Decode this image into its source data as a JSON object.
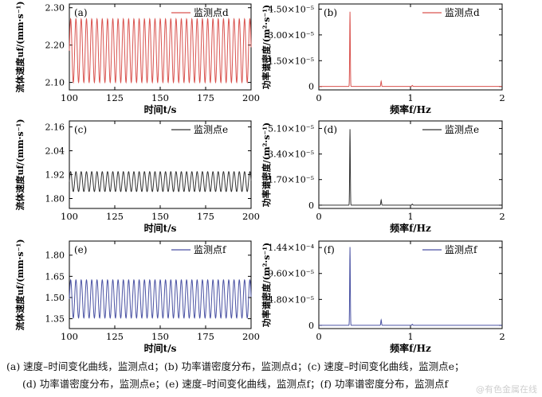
{
  "chart_data": [
    {
      "id": "a",
      "type": "line",
      "panel_label": "(a)",
      "xlabel": "时间t/s",
      "ylabel": "流体速度uf/(mm·s⁻¹)",
      "legend": "监测点d",
      "legend_position": "top-right",
      "color": "#d9534f",
      "xlim": [
        100,
        200
      ],
      "ylim": [
        2.08,
        2.31
      ],
      "xticks": [
        "100",
        "125",
        "150",
        "175",
        "200"
      ],
      "yticks": [
        "2.10",
        "2.20",
        "2.30"
      ],
      "series": [
        {
          "mean": 2.185,
          "amplitude": 0.085,
          "period_s": 2.9
        }
      ]
    },
    {
      "id": "b",
      "type": "line",
      "panel_label": "(b)",
      "xlabel": "频率f/Hz",
      "ylabel": "功率谱密度/(m²·s⁻¹)",
      "legend": "监测点d",
      "legend_position": "top-right",
      "color": "#d9534f",
      "xlim": [
        0,
        2
      ],
      "ylim": [
        -2e-06,
        4.8e-05
      ],
      "xticks": [
        "0",
        "1",
        "2"
      ],
      "yticks": [
        "0",
        "1.50×10⁻⁵",
        "3.00×10⁻⁵",
        "4.50×10⁻⁵"
      ],
      "peaks": [
        [
          0.34,
          4.35e-05
        ],
        [
          0.68,
          3e-06
        ],
        [
          1.02,
          6e-07
        ]
      ]
    },
    {
      "id": "c",
      "type": "line",
      "panel_label": "(c)",
      "xlabel": "时间t/s",
      "ylabel": "流体速度uf/(mm·s⁻¹)",
      "legend": "监测点e",
      "legend_position": "top-right",
      "color": "#333333",
      "xlim": [
        100,
        200
      ],
      "ylim": [
        1.75,
        2.19
      ],
      "xticks": [
        "100",
        "125",
        "150",
        "175",
        "200"
      ],
      "yticks": [
        "1.80",
        "1.92",
        "2.04",
        "2.16"
      ],
      "series": [
        {
          "mean": 1.885,
          "amplitude": 0.05,
          "period_s": 2.9
        }
      ]
    },
    {
      "id": "d",
      "type": "line",
      "panel_label": "(d)",
      "xlabel": "频率f/Hz",
      "ylabel": "功率谱密度/(m²·s⁻¹)",
      "legend": "监测点e",
      "legend_position": "top-right",
      "color": "#333333",
      "xlim": [
        0,
        2
      ],
      "ylim": [
        -2.2e-06,
        5.6e-05
      ],
      "xticks": [
        "0",
        "1",
        "2"
      ],
      "yticks": [
        "0",
        "1.70×10⁻⁵",
        "3.40×10⁻⁵",
        "5.10×10⁻⁵"
      ],
      "peaks": [
        [
          0.34,
          5.05e-05
        ],
        [
          0.68,
          3.4e-06
        ],
        [
          1.02,
          7e-07
        ]
      ]
    },
    {
      "id": "e",
      "type": "line",
      "panel_label": "(e)",
      "xlabel": "时间t/s",
      "ylabel": "流体速度uf/(mm·s⁻¹)",
      "legend": "监测点f",
      "legend_position": "top-right",
      "color": "#4a52a3",
      "xlim": [
        100,
        200
      ],
      "ylim": [
        1.28,
        1.9
      ],
      "xticks": [
        "100",
        "125",
        "150",
        "175",
        "200"
      ],
      "yticks": [
        "1.35",
        "1.50",
        "1.65",
        "1.80"
      ],
      "series": [
        {
          "mean": 1.49,
          "amplitude": 0.135,
          "period_s": 2.9
        }
      ]
    },
    {
      "id": "f",
      "type": "line",
      "panel_label": "(f)",
      "xlabel": "频率f/Hz",
      "ylabel": "功率谱密度/(m²·s⁻¹)",
      "legend": "监测点f",
      "legend_position": "top-right",
      "color": "#4a52a3",
      "xlim": [
        0,
        2
      ],
      "ylim": [
        -6e-06,
        0.000156
      ],
      "xticks": [
        "0",
        "1",
        "2"
      ],
      "yticks": [
        "0",
        "4.80×10⁻⁵",
        "9.60×10⁻⁵",
        "1.44×10⁻⁴"
      ],
      "peaks": [
        [
          0.34,
          0.000145
        ],
        [
          0.68,
          1e-05
        ],
        [
          1.02,
          2e-06
        ]
      ]
    }
  ],
  "caption": {
    "line1": "(a) 速度–时间变化曲线，监测点d；(b) 功率谱密度分布，监测点d；(c) 速度–时间变化曲线，监测点e；",
    "line2": "(d) 功率谱密度分布，监测点e；(e) 速度–时间变化曲线，监测点f；(f) 功率谱密度分布，监测点f"
  },
  "watermark": "@有色金属在线"
}
